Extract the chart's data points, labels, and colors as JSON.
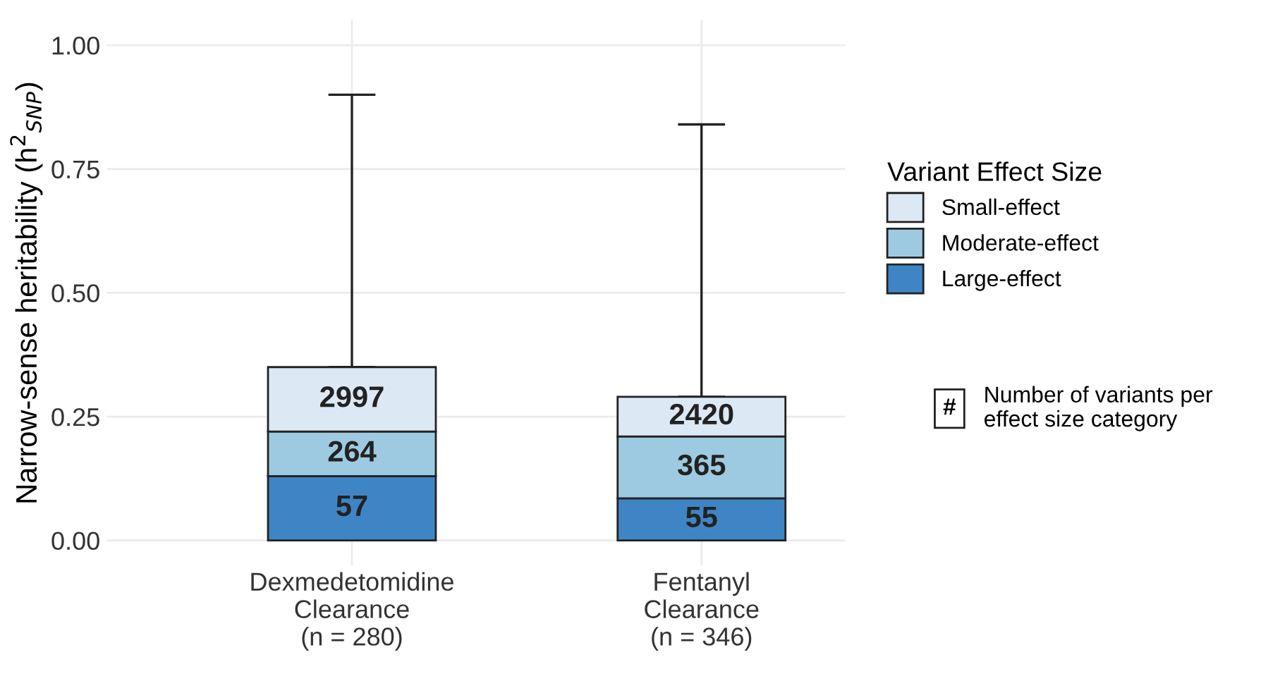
{
  "chart_data": {
    "type": "bar",
    "stacked": true,
    "ylabel": "Narrow-sense heritability (h$^{2}$$_{SNP}$)",
    "legend_title": "Variant Effect Size",
    "categories": [
      "Dexmedetomidine\nClearance\n(n = 280)",
      "Fentanyl\nClearance\n(n = 346)"
    ],
    "series": [
      {
        "name": "Large-effect",
        "color": "#3f85c6",
        "values": [
          0.13,
          0.085
        ]
      },
      {
        "name": "Moderate-effect",
        "color": "#9ecae1",
        "values": [
          0.09,
          0.125
        ]
      },
      {
        "name": "Small-effect",
        "color": "#dce9f5",
        "values": [
          0.13,
          0.08
        ],
        "errors": [
          [
            0.35,
            0.9
          ],
          [
            0.29,
            0.84
          ]
        ]
      }
    ],
    "ylim": [
      0,
      1
    ],
    "yticks": [
      {
        "value": 0,
        "label": "0.00"
      },
      {
        "value": 0.25,
        "label": "0.25"
      },
      {
        "value": 0.5,
        "label": "0.50"
      },
      {
        "value": 0.75,
        "label": "0.75"
      },
      {
        "value": 1,
        "label": "1.00"
      }
    ],
    "grid": true,
    "legend": "right",
    "annotations": [
      "#",
      "Number of variants per\neffect size category",
      "57",
      "264",
      "2997",
      "55",
      "365",
      "2420"
    ]
  }
}
